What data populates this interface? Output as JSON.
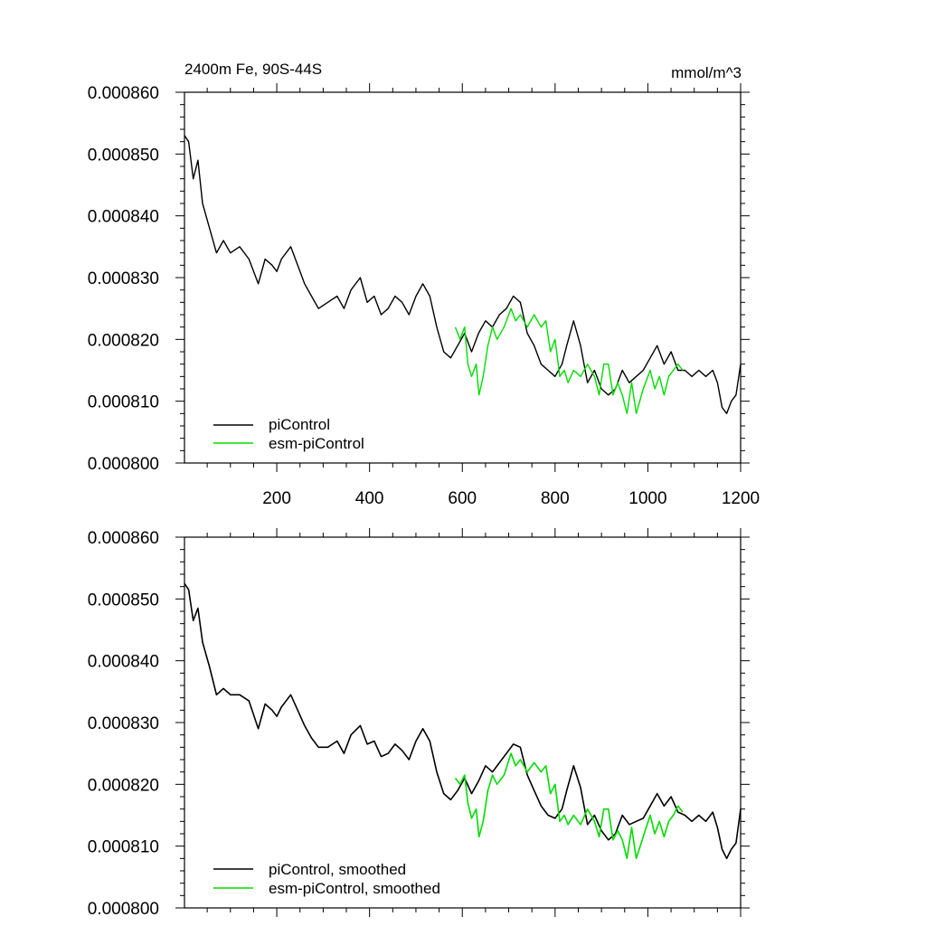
{
  "chart_data": [
    {
      "type": "line",
      "title_left": "2400m Fe, 90S-44S",
      "title_right": "mmol/m^3",
      "xlabel": "",
      "ylabel": "",
      "xlim": [
        1,
        1200
      ],
      "ylim": [
        0.0008,
        0.00086
      ],
      "xticks": [
        200,
        400,
        600,
        800,
        1000,
        1200
      ],
      "yticks": [
        "0.000800",
        "0.000810",
        "0.000820",
        "0.000830",
        "0.000840",
        "0.000850",
        "0.000860"
      ],
      "show_x_tick_labels": true,
      "grid": false,
      "legend_position": "bottom-left",
      "series": [
        {
          "name": "piControl",
          "color": "#000000",
          "x": [
            1,
            10,
            20,
            30,
            40,
            55,
            70,
            85,
            100,
            120,
            140,
            160,
            175,
            190,
            200,
            210,
            230,
            245,
            260,
            275,
            290,
            310,
            330,
            345,
            360,
            380,
            395,
            410,
            425,
            440,
            455,
            470,
            485,
            500,
            515,
            530,
            545,
            560,
            575,
            590,
            605,
            620,
            635,
            650,
            665,
            680,
            695,
            710,
            725,
            740,
            755,
            770,
            785,
            800,
            815,
            825,
            840,
            855,
            870,
            885,
            900,
            915,
            930,
            945,
            960,
            975,
            990,
            1005,
            1020,
            1035,
            1050,
            1065,
            1080,
            1095,
            1110,
            1125,
            1140,
            1150,
            1160,
            1170,
            1180,
            1190,
            1200
          ],
          "y": [
            0.000853,
            0.000852,
            0.000846,
            0.000849,
            0.000842,
            0.000838,
            0.000834,
            0.000836,
            0.000834,
            0.000835,
            0.000833,
            0.000829,
            0.000833,
            0.000832,
            0.000831,
            0.000833,
            0.000835,
            0.000832,
            0.000829,
            0.000827,
            0.000825,
            0.000826,
            0.000827,
            0.000825,
            0.000828,
            0.00083,
            0.000826,
            0.000827,
            0.000824,
            0.000825,
            0.000827,
            0.000826,
            0.000824,
            0.000827,
            0.000829,
            0.000827,
            0.000822,
            0.000818,
            0.000817,
            0.000819,
            0.000821,
            0.000818,
            0.000821,
            0.000823,
            0.000822,
            0.000824,
            0.000825,
            0.000827,
            0.000826,
            0.000821,
            0.000819,
            0.000816,
            0.000815,
            0.000814,
            0.000816,
            0.000819,
            0.000823,
            0.000819,
            0.000813,
            0.000815,
            0.000812,
            0.000811,
            0.000812,
            0.000815,
            0.000813,
            0.000814,
            0.000815,
            0.000817,
            0.000819,
            0.000816,
            0.000818,
            0.000815,
            0.000815,
            0.000814,
            0.000815,
            0.000814,
            0.000815,
            0.000813,
            0.000809,
            0.000808,
            0.00081,
            0.000811,
            0.000816
          ]
        },
        {
          "name": "esm-piControl",
          "color": "#00dd00",
          "x": [
            585,
            595,
            605,
            612,
            620,
            630,
            636,
            645,
            655,
            665,
            675,
            690,
            705,
            715,
            725,
            740,
            755,
            770,
            780,
            790,
            800,
            810,
            820,
            828,
            840,
            855,
            870,
            885,
            895,
            905,
            915,
            925,
            935,
            945,
            955,
            965,
            975,
            990,
            1005,
            1015,
            1025,
            1035,
            1045,
            1055,
            1065,
            1075
          ],
          "y": [
            0.000822,
            0.00082,
            0.000822,
            0.000816,
            0.000814,
            0.000816,
            0.000811,
            0.000814,
            0.000819,
            0.000822,
            0.00082,
            0.000822,
            0.000825,
            0.000823,
            0.000824,
            0.000822,
            0.000824,
            0.000822,
            0.000823,
            0.000818,
            0.00082,
            0.000814,
            0.000815,
            0.000813,
            0.000815,
            0.000814,
            0.000816,
            0.000814,
            0.000811,
            0.000816,
            0.000816,
            0.000811,
            0.000813,
            0.000811,
            0.000808,
            0.000813,
            0.000808,
            0.000812,
            0.000815,
            0.000812,
            0.000814,
            0.000811,
            0.000814,
            0.000815,
            0.000816,
            0.000815
          ]
        }
      ]
    },
    {
      "type": "line",
      "title_left": "",
      "title_right": "",
      "xlabel": "",
      "ylabel": "",
      "xlim": [
        1,
        1200
      ],
      "ylim": [
        0.0008,
        0.00086
      ],
      "xticks": [
        200,
        400,
        600,
        800,
        1000,
        1200
      ],
      "yticks": [
        "0.000800",
        "0.000810",
        "0.000820",
        "0.000830",
        "0.000840",
        "0.000850",
        "0.000860"
      ],
      "show_x_tick_labels": false,
      "grid": false,
      "legend_position": "bottom-left",
      "series": [
        {
          "name": "piControl, smoothed",
          "color": "#000000",
          "x": [
            1,
            10,
            20,
            30,
            40,
            55,
            70,
            85,
            100,
            120,
            140,
            160,
            175,
            190,
            200,
            210,
            230,
            245,
            260,
            275,
            290,
            310,
            330,
            345,
            360,
            380,
            395,
            410,
            425,
            440,
            455,
            470,
            485,
            500,
            515,
            530,
            545,
            560,
            575,
            590,
            605,
            620,
            635,
            650,
            665,
            680,
            695,
            710,
            725,
            740,
            755,
            770,
            785,
            800,
            815,
            825,
            840,
            855,
            870,
            885,
            900,
            915,
            930,
            945,
            960,
            975,
            990,
            1005,
            1020,
            1035,
            1050,
            1065,
            1080,
            1095,
            1110,
            1125,
            1140,
            1150,
            1160,
            1170,
            1180,
            1190,
            1200
          ],
          "y": [
            0.0008525,
            0.0008515,
            0.0008465,
            0.0008485,
            0.000843,
            0.000839,
            0.0008345,
            0.0008355,
            0.0008345,
            0.0008345,
            0.0008335,
            0.000829,
            0.000833,
            0.000832,
            0.000831,
            0.0008325,
            0.0008345,
            0.000832,
            0.0008295,
            0.0008275,
            0.000826,
            0.000826,
            0.000827,
            0.000825,
            0.000828,
            0.0008295,
            0.0008265,
            0.000827,
            0.0008245,
            0.000825,
            0.0008265,
            0.0008255,
            0.000824,
            0.000827,
            0.000829,
            0.000827,
            0.000822,
            0.0008185,
            0.0008175,
            0.000819,
            0.000821,
            0.0008185,
            0.0008205,
            0.000823,
            0.000822,
            0.0008235,
            0.000825,
            0.0008265,
            0.000826,
            0.0008215,
            0.000819,
            0.0008165,
            0.000815,
            0.0008145,
            0.000816,
            0.000819,
            0.000823,
            0.0008195,
            0.0008135,
            0.000815,
            0.0008125,
            0.000811,
            0.000812,
            0.000815,
            0.0008135,
            0.000814,
            0.0008145,
            0.0008165,
            0.0008185,
            0.0008165,
            0.000818,
            0.0008155,
            0.000815,
            0.000814,
            0.000815,
            0.000814,
            0.0008155,
            0.000813,
            0.0008095,
            0.000808,
            0.0008095,
            0.0008105,
            0.000816
          ]
        },
        {
          "name": "esm-piControl, smoothed",
          "color": "#00dd00",
          "x": [
            585,
            595,
            605,
            612,
            620,
            630,
            636,
            645,
            655,
            665,
            675,
            690,
            705,
            715,
            725,
            740,
            755,
            770,
            780,
            790,
            800,
            810,
            820,
            828,
            840,
            855,
            870,
            885,
            895,
            905,
            915,
            925,
            935,
            945,
            955,
            965,
            975,
            990,
            1005,
            1015,
            1025,
            1035,
            1045,
            1055,
            1065,
            1075
          ],
          "y": [
            0.000821,
            0.00082,
            0.0008215,
            0.000817,
            0.0008145,
            0.000816,
            0.0008115,
            0.000814,
            0.000819,
            0.0008215,
            0.00082,
            0.0008215,
            0.000825,
            0.000823,
            0.000824,
            0.000822,
            0.0008235,
            0.000822,
            0.000823,
            0.0008185,
            0.00082,
            0.000814,
            0.000815,
            0.0008135,
            0.000815,
            0.0008135,
            0.000816,
            0.000814,
            0.0008115,
            0.000816,
            0.000816,
            0.000811,
            0.0008125,
            0.000811,
            0.000808,
            0.000813,
            0.000808,
            0.0008115,
            0.000815,
            0.000812,
            0.000814,
            0.0008115,
            0.000814,
            0.000815,
            0.0008165,
            0.0008155
          ]
        }
      ]
    }
  ]
}
